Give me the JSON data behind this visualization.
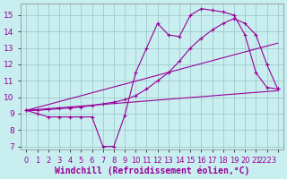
{
  "xlabel": "Windchill (Refroidissement éolien,°C)",
  "xlim": [
    -0.5,
    23.5
  ],
  "ylim": [
    6.8,
    15.7
  ],
  "bg_color": "#c8eef0",
  "line_color": "#990099",
  "grid_color": "#a0c8cc",
  "curve1_x": [
    0,
    1,
    2,
    3,
    4,
    5,
    6,
    7,
    8,
    9,
    10,
    11,
    12,
    13,
    14,
    15,
    16,
    17,
    18,
    19,
    20,
    21,
    22,
    23
  ],
  "curve1_y": [
    9.2,
    9.0,
    8.8,
    8.8,
    8.8,
    8.8,
    8.8,
    7.0,
    7.0,
    8.9,
    11.5,
    13.0,
    14.5,
    13.8,
    13.7,
    15.0,
    15.4,
    15.3,
    15.2,
    15.0,
    13.8,
    11.5,
    10.6,
    10.5
  ],
  "curve2_x": [
    0,
    1,
    2,
    3,
    4,
    5,
    6,
    7,
    8,
    9,
    10,
    11,
    12,
    13,
    14,
    15,
    16,
    17,
    18,
    19,
    20,
    21,
    22,
    23
  ],
  "curve2_y": [
    9.2,
    9.2,
    9.25,
    9.3,
    9.35,
    9.4,
    9.5,
    9.6,
    9.7,
    9.85,
    10.1,
    10.5,
    11.0,
    11.5,
    12.2,
    13.0,
    13.6,
    14.1,
    14.5,
    14.8,
    14.5,
    13.8,
    12.0,
    10.5
  ],
  "curve3_x": [
    0,
    23
  ],
  "curve3_y": [
    9.2,
    13.3
  ],
  "curve4_x": [
    0,
    23
  ],
  "curve4_y": [
    9.2,
    10.4
  ],
  "ytick_values": [
    7,
    8,
    9,
    10,
    11,
    12,
    13,
    14,
    15
  ],
  "xtick_positions": [
    0,
    1,
    2,
    3,
    4,
    5,
    6,
    7,
    8,
    9,
    10,
    11,
    12,
    13,
    14,
    15,
    16,
    17,
    18,
    19,
    20,
    21,
    22,
    23
  ],
  "xtick_labels": [
    "0",
    "1",
    "2",
    "3",
    "4",
    "5",
    "6",
    "7",
    "8",
    "9",
    "10",
    "11",
    "12",
    "13",
    "14",
    "15",
    "16",
    "17",
    "18",
    "19",
    "20",
    "21",
    "2223",
    ""
  ],
  "font_size": 6.5,
  "xlabel_fontsize": 7
}
